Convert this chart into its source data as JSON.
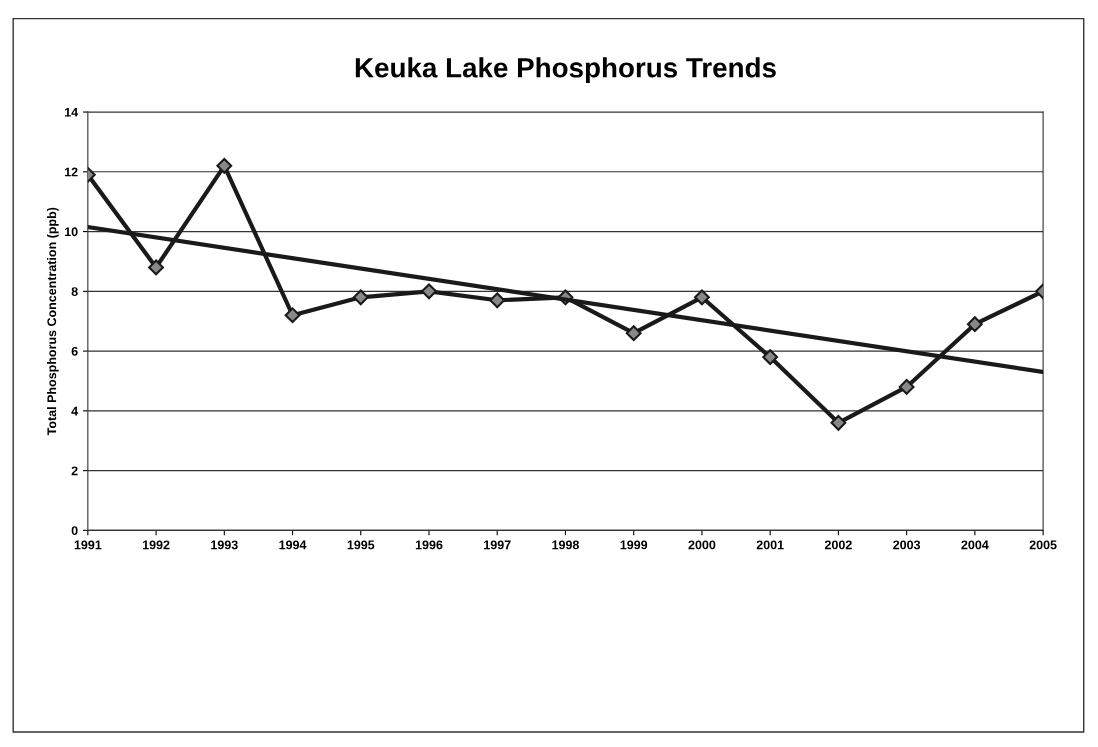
{
  "chart_data": {
    "type": "line",
    "title": "Keuka Lake Phosphorus Trends",
    "ylabel": "Total Phosphorus Concentration (ppb)",
    "x": [
      1991,
      1992,
      1993,
      1994,
      1995,
      1996,
      1997,
      1998,
      1999,
      2000,
      2001,
      2002,
      2003,
      2004,
      2005
    ],
    "series": [
      {
        "color": "#1a1a1a",
        "values": [
          11.9,
          8.8,
          12.2,
          7.2,
          7.8,
          8.0,
          7.7,
          7.8,
          6.6,
          7.8,
          5.8,
          3.6,
          4.8,
          6.9,
          8.0
        ],
        "marker": "diamond"
      },
      {
        "type": "line",
        "color": "#1a1a1a",
        "x": [
          1991,
          2005
        ],
        "values": [
          10.15,
          5.3
        ],
        "marker": "none"
      }
    ],
    "xlim": [
      1991,
      2005
    ],
    "xticks": [
      1991,
      1992,
      1993,
      1994,
      1995,
      1996,
      1997,
      1998,
      1999,
      2000,
      2001,
      2002,
      2003,
      2004,
      2005
    ],
    "ylim": [
      0,
      14
    ],
    "yticks": [
      0,
      2,
      4,
      6,
      8,
      10,
      12,
      14
    ],
    "grid": "y",
    "legend": false,
    "line_style": "solid"
  }
}
